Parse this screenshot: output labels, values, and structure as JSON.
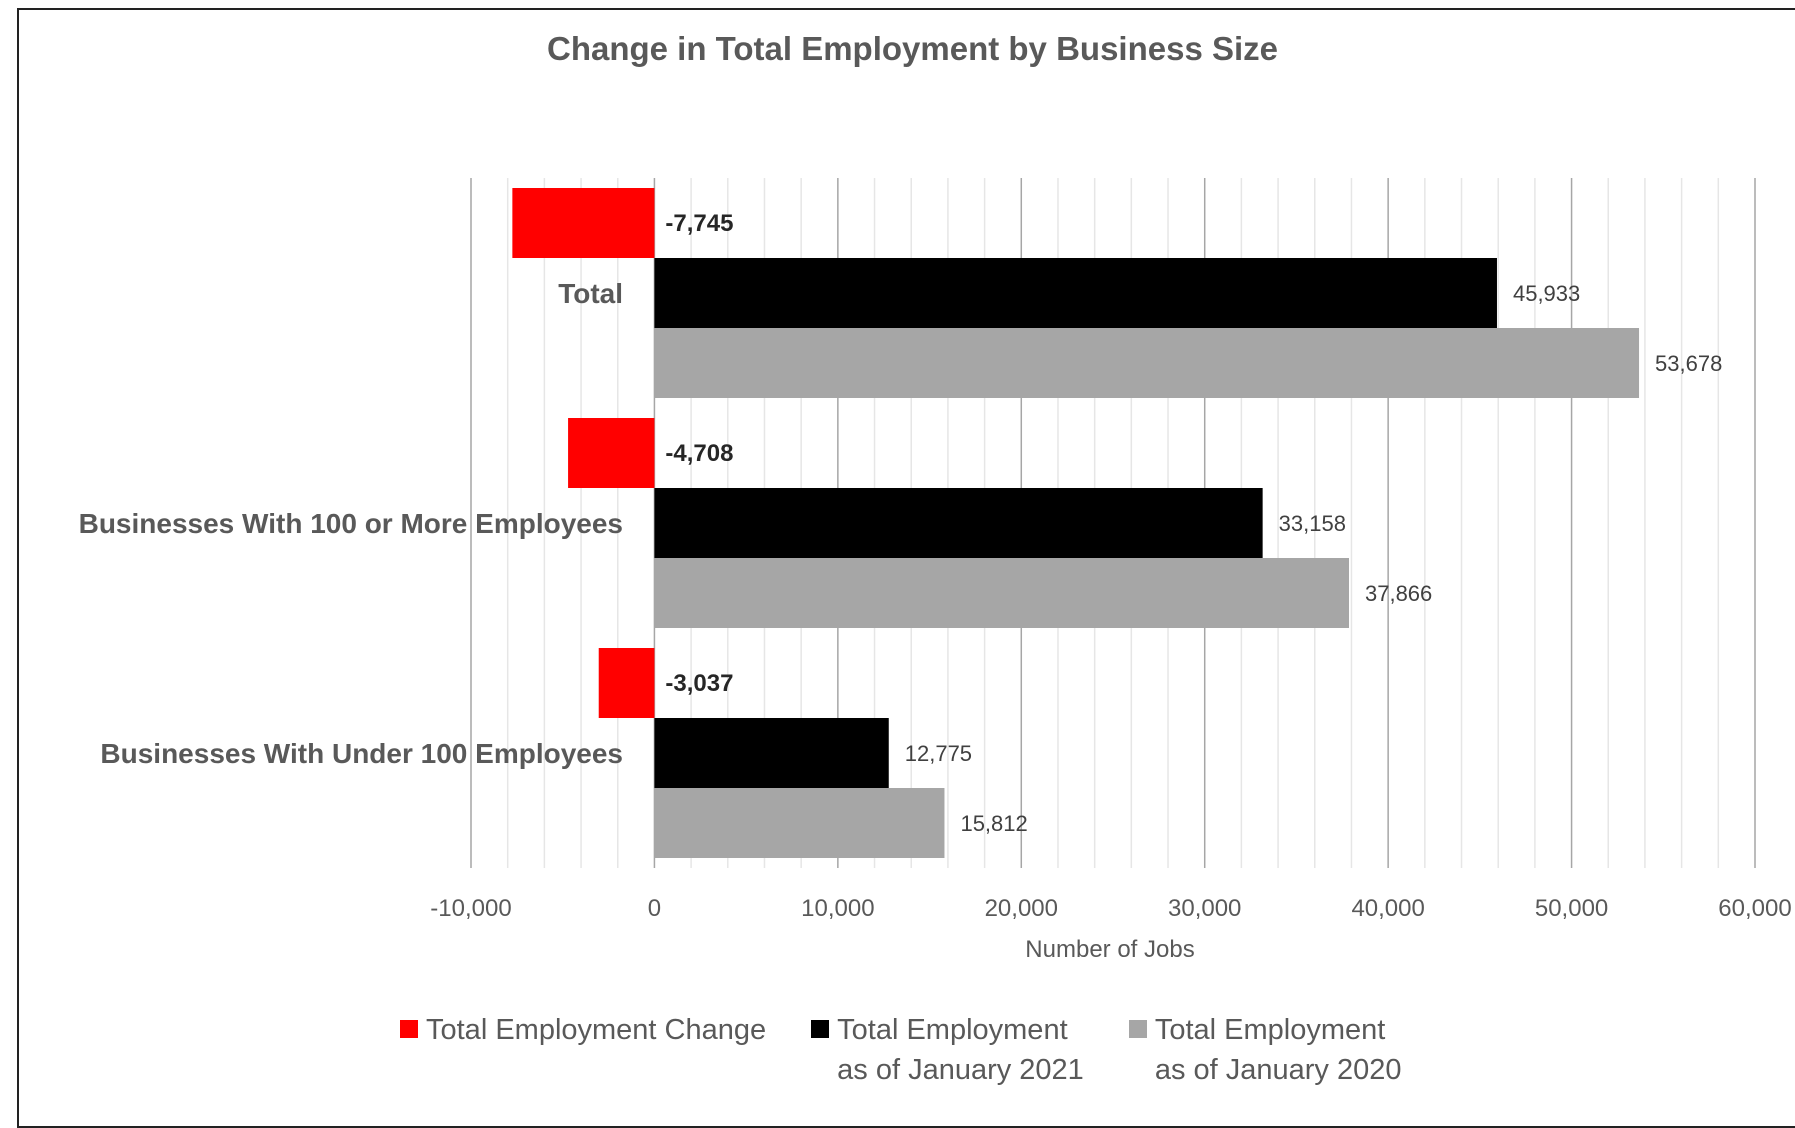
{
  "chart_data": {
    "type": "bar",
    "orientation": "horizontal",
    "title": "Change in Total Employment by Business Size",
    "xlabel": "Number of Jobs",
    "ylabel": "",
    "xlim": [
      -10000,
      60000
    ],
    "major_step": 10000,
    "minor_step": 2000,
    "tick_labels": [
      "-10,000",
      "0",
      "10,000",
      "20,000",
      "30,000",
      "40,000",
      "50,000",
      "60,000"
    ],
    "categories": [
      "Total",
      "Businesses With 100 or More Employees",
      "Businesses With Under 100 Employees"
    ],
    "series": [
      {
        "name": "Total Employment Change",
        "color": "#ff0000",
        "values": [
          -7745,
          -4708,
          -3037
        ],
        "labels": [
          "-7,745",
          "-4,708",
          "-3,037"
        ]
      },
      {
        "name": "Total Employment as of January 2021",
        "color": "#000000",
        "values": [
          45933,
          33158,
          12775
        ],
        "labels": [
          "45,933",
          "33,158",
          "12,775"
        ]
      },
      {
        "name": "Total Employment as of January 2020",
        "color": "#a6a6a6",
        "values": [
          53678,
          37866,
          15812
        ],
        "labels": [
          "53,678",
          "37,866",
          "15,812"
        ]
      }
    ],
    "grid": true,
    "legend_position": "bottom"
  },
  "legend": [
    {
      "label": "Total Employment Change",
      "color": "#ff0000"
    },
    {
      "label": "Total Employment\nas of January 2021",
      "color": "#000000"
    },
    {
      "label": "Total Employment\nas of January 2020",
      "color": "#a6a6a6"
    }
  ]
}
